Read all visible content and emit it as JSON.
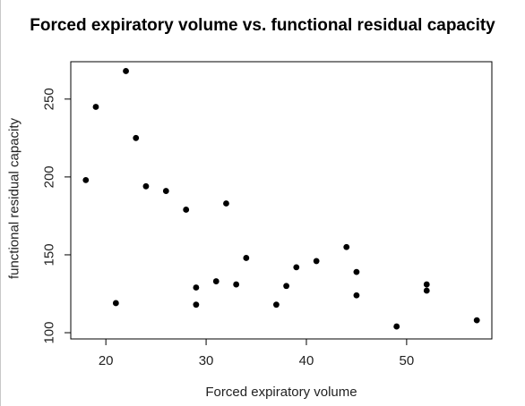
{
  "chart_data": {
    "type": "scatter",
    "title": "Forced expiratory volume vs. functional residual capacity",
    "xlabel": "Forced expiratory volume",
    "ylabel": "functional residual capacity",
    "xlim": [
      16.5,
      58.5
    ],
    "ylim": [
      96,
      274
    ],
    "xticks": [
      20,
      30,
      40,
      50
    ],
    "yticks": [
      100,
      150,
      200,
      250
    ],
    "grid": false,
    "point_color": "#000000",
    "points": [
      {
        "x": 18,
        "y": 198
      },
      {
        "x": 19,
        "y": 245
      },
      {
        "x": 21,
        "y": 119
      },
      {
        "x": 22,
        "y": 268
      },
      {
        "x": 23,
        "y": 225
      },
      {
        "x": 24,
        "y": 194
      },
      {
        "x": 26,
        "y": 191
      },
      {
        "x": 28,
        "y": 179
      },
      {
        "x": 29,
        "y": 129
      },
      {
        "x": 29,
        "y": 118
      },
      {
        "x": 31,
        "y": 133
      },
      {
        "x": 32,
        "y": 183
      },
      {
        "x": 33,
        "y": 131
      },
      {
        "x": 34,
        "y": 148
      },
      {
        "x": 37,
        "y": 118
      },
      {
        "x": 38,
        "y": 130
      },
      {
        "x": 39,
        "y": 142
      },
      {
        "x": 41,
        "y": 146
      },
      {
        "x": 44,
        "y": 155
      },
      {
        "x": 45,
        "y": 139
      },
      {
        "x": 45,
        "y": 124
      },
      {
        "x": 49,
        "y": 104
      },
      {
        "x": 52,
        "y": 131
      },
      {
        "x": 52,
        "y": 127
      },
      {
        "x": 57,
        "y": 108
      }
    ]
  }
}
